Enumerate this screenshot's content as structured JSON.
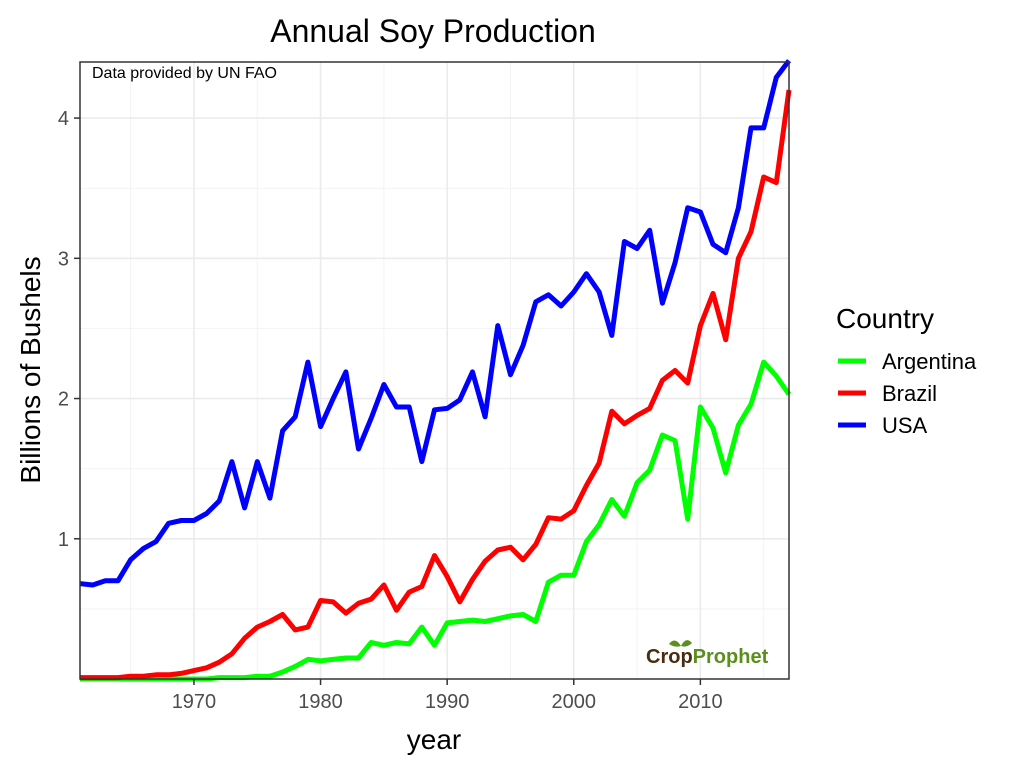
{
  "chart_data": {
    "type": "line",
    "title": "Annual Soy Production",
    "annotation": "Data provided by UN FAO",
    "xlabel": "year",
    "ylabel": "Billions of Bushels",
    "xlim": [
      1961,
      2017
    ],
    "ylim": [
      0,
      4.4
    ],
    "x_ticks": [
      1970,
      1980,
      1990,
      2000,
      2010
    ],
    "y_ticks": [
      1,
      2,
      3,
      4
    ],
    "grid": true,
    "legend": {
      "title": "Country",
      "placement": "right"
    },
    "x": [
      1961,
      1962,
      1963,
      1964,
      1965,
      1966,
      1967,
      1968,
      1969,
      1970,
      1971,
      1972,
      1973,
      1974,
      1975,
      1976,
      1977,
      1978,
      1979,
      1980,
      1981,
      1982,
      1983,
      1984,
      1985,
      1986,
      1987,
      1988,
      1989,
      1990,
      1991,
      1992,
      1993,
      1994,
      1995,
      1996,
      1997,
      1998,
      1999,
      2000,
      2001,
      2002,
      2003,
      2004,
      2005,
      2006,
      2007,
      2008,
      2009,
      2010,
      2011,
      2012,
      2013,
      2014,
      2015,
      2016,
      2017
    ],
    "series": [
      {
        "name": "Argentina",
        "color": "#00ff00",
        "values": [
          0,
          0,
          0,
          0,
          0,
          0,
          0,
          0,
          0,
          0,
          0,
          0.01,
          0.01,
          0.01,
          0.02,
          0.02,
          0.05,
          0.09,
          0.14,
          0.13,
          0.14,
          0.15,
          0.15,
          0.26,
          0.24,
          0.26,
          0.25,
          0.37,
          0.24,
          0.4,
          0.41,
          0.42,
          0.41,
          0.43,
          0.45,
          0.46,
          0.41,
          0.69,
          0.74,
          0.74,
          0.98,
          1.1,
          1.28,
          1.16,
          1.4,
          1.49,
          1.74,
          1.7,
          1.14,
          1.94,
          1.79,
          1.47,
          1.81,
          1.96,
          2.26,
          2.16,
          2.03
        ]
      },
      {
        "name": "Brazil",
        "color": "#ff0000",
        "values": [
          0.01,
          0.01,
          0.01,
          0.01,
          0.02,
          0.02,
          0.03,
          0.03,
          0.04,
          0.06,
          0.08,
          0.12,
          0.18,
          0.29,
          0.37,
          0.41,
          0.46,
          0.35,
          0.37,
          0.56,
          0.55,
          0.47,
          0.54,
          0.57,
          0.67,
          0.49,
          0.62,
          0.66,
          0.88,
          0.73,
          0.55,
          0.71,
          0.84,
          0.92,
          0.94,
          0.85,
          0.96,
          1.15,
          1.14,
          1.2,
          1.38,
          1.54,
          1.91,
          1.82,
          1.88,
          1.93,
          2.13,
          2.2,
          2.11,
          2.52,
          2.75,
          2.42,
          3.0,
          3.19,
          3.58,
          3.54,
          4.2
        ]
      },
      {
        "name": "USA",
        "color": "#0000ff",
        "values": [
          0.68,
          0.67,
          0.7,
          0.7,
          0.85,
          0.93,
          0.98,
          1.11,
          1.13,
          1.13,
          1.18,
          1.27,
          1.55,
          1.22,
          1.55,
          1.29,
          1.77,
          1.87,
          2.26,
          1.8,
          2.0,
          2.19,
          1.64,
          1.86,
          2.1,
          1.94,
          1.94,
          1.55,
          1.92,
          1.93,
          1.99,
          2.19,
          1.87,
          2.52,
          2.17,
          2.38,
          2.69,
          2.74,
          2.66,
          2.76,
          2.89,
          2.76,
          2.45,
          3.12,
          3.07,
          3.2,
          2.68,
          2.97,
          3.36,
          3.33,
          3.1,
          3.04,
          3.36,
          3.93,
          3.93,
          4.29,
          4.41
        ]
      }
    ]
  },
  "logo": {
    "part1": "Crop",
    "part2": "Prophet"
  }
}
